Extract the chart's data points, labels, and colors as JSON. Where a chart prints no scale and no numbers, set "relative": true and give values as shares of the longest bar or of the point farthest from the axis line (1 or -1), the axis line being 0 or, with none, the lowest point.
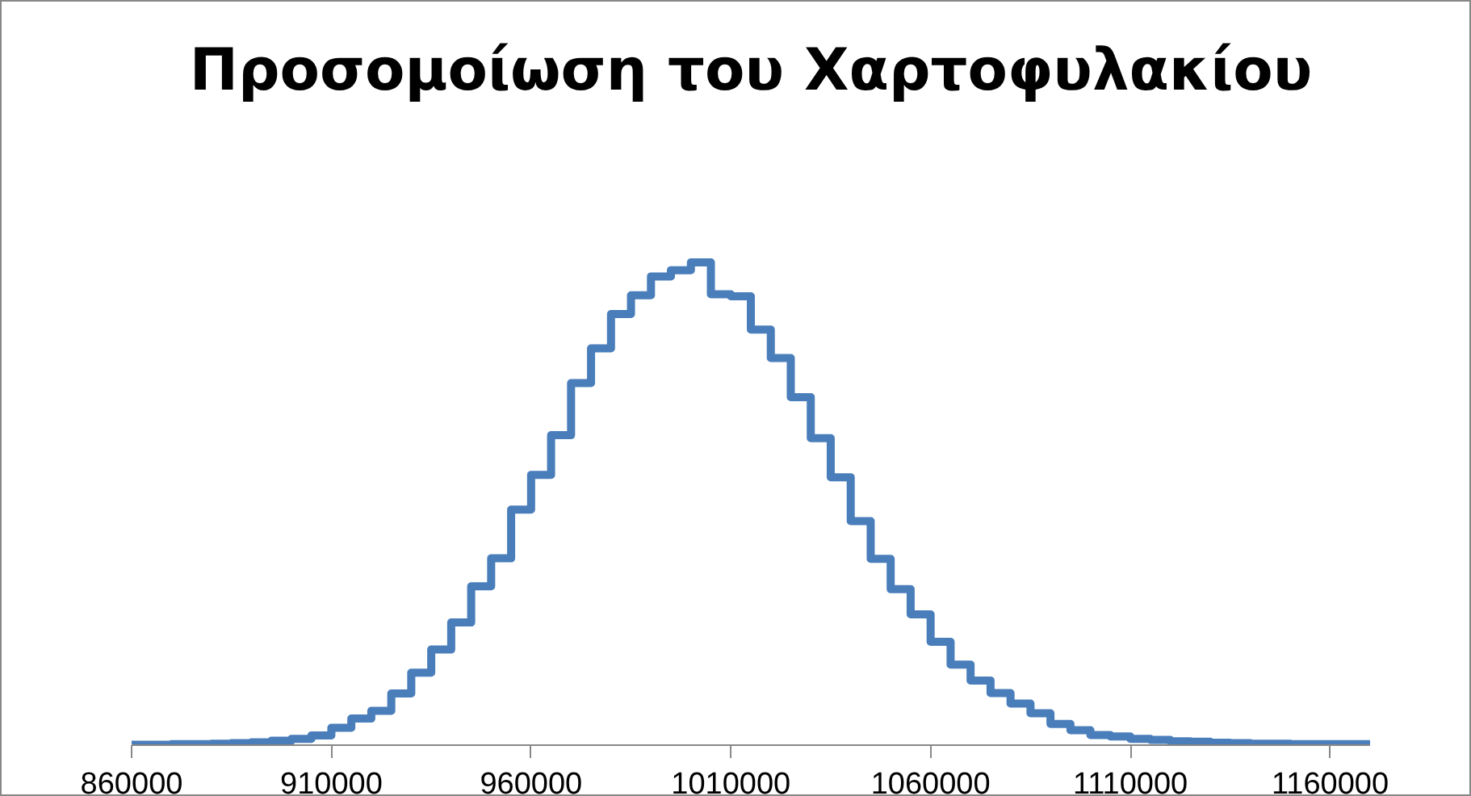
{
  "chart_data": {
    "type": "step",
    "title": "Προσομοίωση του Χαρτοφυλακίου",
    "relative": true,
    "x": [
      860000,
      865000,
      870000,
      875000,
      880000,
      885000,
      890000,
      895000,
      900000,
      905000,
      910000,
      915000,
      920000,
      925000,
      930000,
      935000,
      940000,
      945000,
      950000,
      955000,
      960000,
      965000,
      970000,
      975000,
      980000,
      985000,
      990000,
      995000,
      1000000,
      1005000,
      1010000,
      1015000,
      1020000,
      1025000,
      1030000,
      1035000,
      1040000,
      1045000,
      1050000,
      1055000,
      1060000,
      1065000,
      1070000,
      1075000,
      1080000,
      1085000,
      1090000,
      1095000,
      1100000,
      1105000,
      1110000,
      1115000,
      1120000,
      1125000,
      1130000,
      1135000,
      1140000,
      1145000,
      1150000,
      1155000,
      1160000,
      1165000,
      1170000
    ],
    "series": [
      {
        "color": "#4a7ebb",
        "values": [
          0.001,
          0.001,
          0.002,
          0.002,
          0.003,
          0.004,
          0.006,
          0.009,
          0.013,
          0.02,
          0.036,
          0.055,
          0.071,
          0.107,
          0.15,
          0.198,
          0.254,
          0.329,
          0.387,
          0.488,
          0.56,
          0.642,
          0.75,
          0.822,
          0.893,
          0.932,
          0.971,
          0.984,
          1,
          0.934,
          0.93,
          0.861,
          0.802,
          0.721,
          0.636,
          0.555,
          0.464,
          0.386,
          0.323,
          0.271,
          0.214,
          0.167,
          0.134,
          0.108,
          0.086,
          0.066,
          0.044,
          0.031,
          0.021,
          0.018,
          0.013,
          0.011,
          0.008,
          0.007,
          0.005,
          0.004,
          0.003,
          0.003,
          0.002,
          0.002,
          0.002,
          0.002,
          0.002
        ]
      }
    ],
    "xlim": [
      860000,
      1170000
    ],
    "xticks": [
      860000,
      910000,
      960000,
      1010000,
      1060000,
      1110000,
      1160000
    ],
    "grid": false
  }
}
